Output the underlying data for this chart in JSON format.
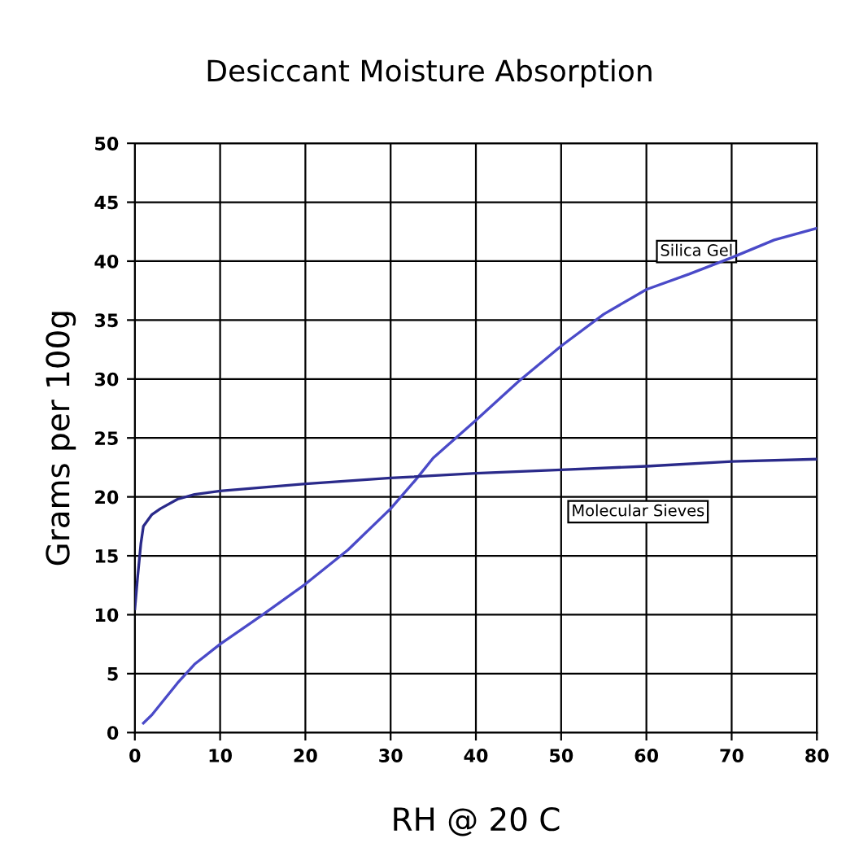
{
  "chart_data": {
    "type": "line",
    "title": "Desiccant Moisture Absorption",
    "xlabel": "RH @ 20 C",
    "ylabel": "Grams per 100g",
    "xlim": [
      0,
      80
    ],
    "xticks": [
      0,
      10,
      20,
      30,
      40,
      50,
      60,
      70,
      80
    ],
    "ylim": [
      0,
      50
    ],
    "yticks": [
      0,
      5,
      10,
      15,
      20,
      25,
      30,
      35,
      40,
      45,
      50
    ],
    "grid": true,
    "legend": false,
    "series": [
      {
        "name": "Silica Gel",
        "color": "#4a4ac8",
        "x": [
          1,
          2,
          3,
          5,
          7,
          10,
          15,
          20,
          25,
          30,
          33,
          35,
          40,
          45,
          50,
          55,
          60,
          65,
          70,
          75,
          80
        ],
        "values": [
          0.8,
          1.5,
          2.4,
          4.2,
          5.8,
          7.5,
          10,
          12.6,
          15.5,
          19,
          21.5,
          23.3,
          26.5,
          29.8,
          32.8,
          35.5,
          37.6,
          38.9,
          40.3,
          41.8,
          42.8
        ]
      },
      {
        "name": "Molecular Sieves",
        "color": "#2a2a8a",
        "x": [
          0,
          0.3,
          0.7,
          1,
          2,
          3,
          5,
          7,
          10,
          20,
          30,
          40,
          50,
          60,
          70,
          80
        ],
        "values": [
          10.5,
          13,
          16,
          17.5,
          18.5,
          19,
          19.8,
          20.2,
          20.5,
          21.1,
          21.6,
          22,
          22.3,
          22.6,
          23,
          23.2
        ]
      }
    ]
  }
}
